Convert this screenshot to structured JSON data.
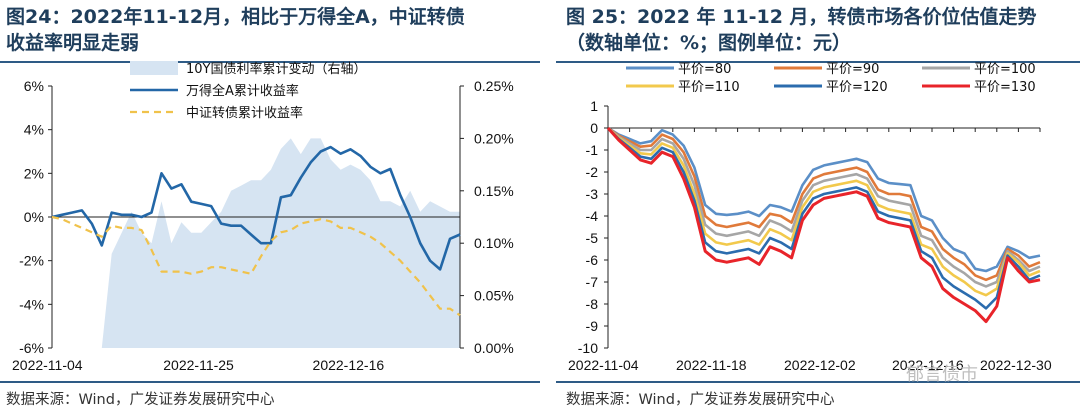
{
  "left": {
    "title_line1": "图24：2022年11-12月，相比于万得全A，中证转债",
    "title_line2": "收益率明显走弱",
    "source": "数据来源：Wind，广发证券发展研究中心",
    "chart_data": {
      "type": "line",
      "legend_placement": "top",
      "y_left": {
        "ticks": [
          "6%",
          "4%",
          "2%",
          "0%",
          "-2%",
          "-4%",
          "-6%"
        ],
        "ylim": [
          -6,
          6
        ],
        "unit": "%"
      },
      "y_right": {
        "ticks": [
          "0.25%",
          "0.20%",
          "0.15%",
          "0.10%",
          "0.05%",
          "0.00%"
        ],
        "ylim": [
          0.0,
          0.25
        ],
        "unit": "%"
      },
      "x_tick_labels": [
        "2022-11-04",
        "2022-11-25",
        "2022-12-16"
      ],
      "x_tick_index": [
        0,
        15,
        30
      ],
      "n_points": 42,
      "grid": false,
      "series": [
        {
          "name": "10Y国债利率累计变动（右轴）",
          "kind": "area",
          "axis": "right",
          "color": "#d6e4f2",
          "values": [
            0.0,
            0.0,
            0.0,
            0.0,
            0.0,
            0.0,
            0.09,
            0.11,
            0.13,
            0.11,
            0.1,
            0.14,
            0.1,
            0.12,
            0.11,
            0.11,
            0.12,
            0.13,
            0.15,
            0.155,
            0.16,
            0.16,
            0.17,
            0.19,
            0.2,
            0.185,
            0.2,
            0.2,
            0.18,
            0.17,
            0.175,
            0.17,
            0.16,
            0.14,
            0.14,
            0.135,
            0.15,
            0.13,
            0.14,
            0.135,
            0.13,
            0.13
          ]
        },
        {
          "name": "万得全A累计收益率",
          "kind": "line",
          "axis": "left",
          "color": "#2367a7",
          "values": [
            0.0,
            0.1,
            0.2,
            0.3,
            -0.3,
            -1.3,
            0.2,
            0.1,
            0.1,
            0.0,
            0.2,
            2.0,
            1.3,
            1.5,
            0.7,
            0.6,
            0.5,
            -0.3,
            -0.4,
            -0.4,
            -0.8,
            -1.2,
            -1.2,
            0.9,
            1.0,
            1.8,
            2.5,
            3.0,
            3.2,
            2.9,
            3.1,
            2.8,
            2.3,
            2.0,
            2.2,
            1.0,
            0.0,
            -1.2,
            -2.0,
            -2.4,
            -1.0,
            -0.8
          ]
        },
        {
          "name": "中证转债累计收益率",
          "kind": "dashed",
          "axis": "left",
          "color": "#f0c24b",
          "values": [
            0.0,
            -0.1,
            -0.3,
            -0.5,
            -0.7,
            -0.9,
            -0.4,
            -0.5,
            -0.5,
            -0.6,
            -1.5,
            -2.5,
            -2.5,
            -2.5,
            -2.6,
            -2.5,
            -2.3,
            -2.3,
            -2.4,
            -2.5,
            -2.6,
            -1.8,
            -1.1,
            -0.7,
            -0.6,
            -0.3,
            -0.2,
            -0.1,
            -0.2,
            -0.5,
            -0.5,
            -0.7,
            -0.9,
            -1.2,
            -1.6,
            -2.0,
            -2.5,
            -3.0,
            -3.6,
            -4.2,
            -4.2,
            -4.5
          ]
        }
      ]
    }
  },
  "right": {
    "title_line1": "图 25：2022 年 11-12 月，转债市场各价位估值走势",
    "title_line2": "（数轴单位：%；图例单位：元）",
    "source": "数据来源：Wind，广发证券发展研究中心",
    "watermark": "郁言债市",
    "chart_data": {
      "type": "line",
      "legend_placement": "top",
      "ylim": [
        -10,
        1
      ],
      "y_ticks": [
        "1",
        "0",
        "-1",
        "-2",
        "-3",
        "-4",
        "-5",
        "-6",
        "-7",
        "-8",
        "-9",
        "-10"
      ],
      "x_tick_labels": [
        "2022-11-04",
        "2022-11-18",
        "2022-12-02",
        "2022-12-16",
        "2022-12-30"
      ],
      "x_tick_index": [
        0,
        10,
        20,
        30,
        40
      ],
      "n_points": 41,
      "grid": false,
      "series": [
        {
          "name": "平价=80",
          "color": "#5b8fc7",
          "values": [
            0.0,
            -0.3,
            -0.5,
            -0.7,
            -0.6,
            -0.1,
            -0.3,
            -0.8,
            -1.8,
            -3.5,
            -3.9,
            -3.95,
            -3.9,
            -3.8,
            -4.0,
            -3.5,
            -3.6,
            -3.8,
            -2.6,
            -1.9,
            -1.7,
            -1.6,
            -1.5,
            -1.4,
            -1.55,
            -2.3,
            -2.5,
            -2.55,
            -2.6,
            -4.0,
            -4.2,
            -5.0,
            -5.5,
            -5.7,
            -6.4,
            -6.5,
            -6.3,
            -5.4,
            -5.6,
            -5.9,
            -5.8
          ]
        },
        {
          "name": "平价=90",
          "color": "#e07a3a",
          "values": [
            0.0,
            -0.35,
            -0.6,
            -0.85,
            -0.8,
            -0.3,
            -0.5,
            -1.1,
            -2.2,
            -4.0,
            -4.4,
            -4.5,
            -4.4,
            -4.3,
            -4.5,
            -3.9,
            -4.0,
            -4.3,
            -3.0,
            -2.3,
            -2.1,
            -2.0,
            -1.9,
            -1.8,
            -2.0,
            -2.8,
            -3.0,
            -3.0,
            -3.1,
            -4.5,
            -4.7,
            -5.5,
            -5.9,
            -6.2,
            -6.7,
            -6.9,
            -6.7,
            -5.5,
            -5.8,
            -6.3,
            -6.1
          ]
        },
        {
          "name": "平价=100",
          "color": "#a6a6a6",
          "values": [
            0.0,
            -0.4,
            -0.7,
            -1.0,
            -1.0,
            -0.5,
            -0.7,
            -1.4,
            -2.6,
            -4.4,
            -4.8,
            -4.9,
            -4.8,
            -4.7,
            -4.9,
            -4.2,
            -4.4,
            -4.7,
            -3.3,
            -2.6,
            -2.4,
            -2.3,
            -2.2,
            -2.1,
            -2.3,
            -3.1,
            -3.3,
            -3.4,
            -3.5,
            -4.9,
            -5.1,
            -5.9,
            -6.3,
            -6.6,
            -7.0,
            -7.2,
            -7.0,
            -5.6,
            -6.0,
            -6.5,
            -6.3
          ]
        },
        {
          "name": "平价=110",
          "color": "#f2c94c",
          "values": [
            0.0,
            -0.45,
            -0.8,
            -1.15,
            -1.2,
            -0.7,
            -0.9,
            -1.7,
            -3.0,
            -4.8,
            -5.2,
            -5.3,
            -5.2,
            -5.1,
            -5.3,
            -4.6,
            -4.8,
            -5.1,
            -3.6,
            -2.9,
            -2.7,
            -2.6,
            -2.5,
            -2.4,
            -2.6,
            -3.5,
            -3.7,
            -3.8,
            -3.9,
            -5.3,
            -5.5,
            -6.3,
            -6.7,
            -7.0,
            -7.4,
            -7.6,
            -7.3,
            -5.7,
            -6.1,
            -6.7,
            -6.5
          ]
        },
        {
          "name": "平价=120",
          "color": "#2b6cae",
          "values": [
            0.0,
            -0.5,
            -0.9,
            -1.3,
            -1.4,
            -0.9,
            -1.1,
            -2.0,
            -3.3,
            -5.2,
            -5.6,
            -5.7,
            -5.6,
            -5.5,
            -5.7,
            -5.0,
            -5.2,
            -5.5,
            -3.9,
            -3.2,
            -3.0,
            -2.9,
            -2.8,
            -2.7,
            -2.9,
            -3.8,
            -4.0,
            -4.1,
            -4.2,
            -5.6,
            -5.9,
            -6.8,
            -7.2,
            -7.5,
            -7.8,
            -8.2,
            -7.7,
            -5.8,
            -6.3,
            -6.9,
            -6.7
          ]
        },
        {
          "name": "平价=130",
          "color": "#e8242a",
          "values": [
            0.0,
            -0.55,
            -1.0,
            -1.45,
            -1.6,
            -1.1,
            -1.3,
            -2.3,
            -3.6,
            -5.6,
            -6.0,
            -6.1,
            -6.0,
            -5.9,
            -6.2,
            -5.4,
            -5.6,
            -5.9,
            -4.2,
            -3.5,
            -3.2,
            -3.1,
            -3.0,
            -2.9,
            -3.1,
            -4.1,
            -4.3,
            -4.4,
            -4.5,
            -5.9,
            -6.3,
            -7.3,
            -7.7,
            -8.0,
            -8.3,
            -8.8,
            -8.1,
            -5.9,
            -6.5,
            -7.0,
            -6.9
          ]
        }
      ]
    }
  }
}
